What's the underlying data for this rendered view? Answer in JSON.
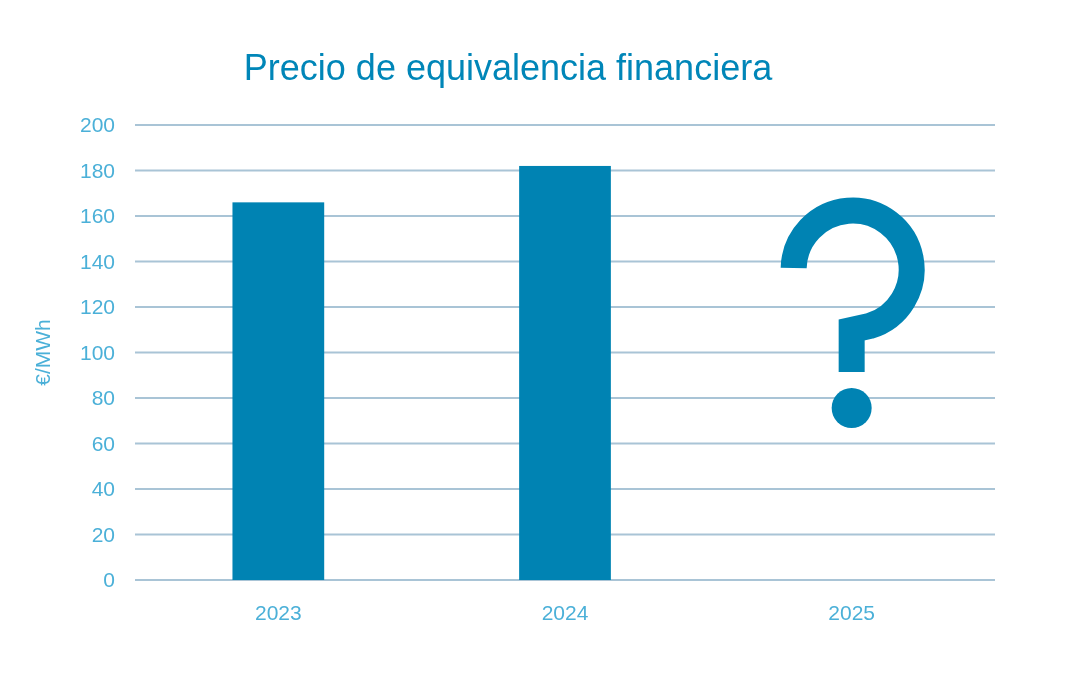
{
  "chart_data": {
    "type": "bar",
    "title": "Precio de equivalencia financiera",
    "ylabel": "€/MWh",
    "categories": [
      "2023",
      "2024",
      "2025"
    ],
    "values": [
      166,
      182,
      null
    ],
    "color": "#0083b3",
    "ylim": [
      0,
      200
    ],
    "yticks": [
      0,
      20,
      40,
      60,
      80,
      100,
      120,
      140,
      160,
      180,
      200
    ],
    "grid": "y"
  }
}
